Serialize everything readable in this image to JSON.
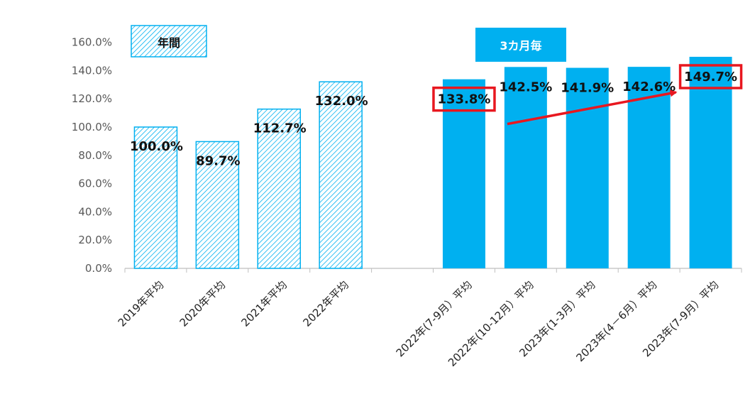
{
  "chart_data": {
    "type": "bar",
    "ylim": [
      0,
      160
    ],
    "yticks": [
      "0.0%",
      "20.0%",
      "40.0%",
      "60.0%",
      "80.0%",
      "100.0%",
      "120.0%",
      "140.0%",
      "160.0%"
    ],
    "grid": false,
    "legend": [
      {
        "label": "年間",
        "style": "hatched"
      },
      {
        "label": "3カ月毎",
        "style": "solid"
      }
    ],
    "series": [
      {
        "categories": [
          "2019年平均",
          "2020年平均",
          "2021年平均",
          "2022年平均"
        ],
        "values": [
          100.0,
          89.7,
          112.7,
          132.0
        ],
        "labels": [
          "100.0%",
          "89.7%",
          "112.7%",
          "132.0%"
        ],
        "color": "#00b0f0",
        "style": "hatched"
      },
      {
        "categories": [
          "2022年(7-9月）平均",
          "2022年(10-12月）平均",
          "2023年(1-3月）平均",
          "2023年(4－6月）平均",
          "2023年(7-9月）平均"
        ],
        "values": [
          133.8,
          142.5,
          141.9,
          142.6,
          149.7
        ],
        "labels": [
          "133.8%",
          "142.5%",
          "141.9%",
          "142.6%",
          "149.7%"
        ],
        "color": "#00b0f0",
        "style": "solid"
      }
    ],
    "annotations": {
      "highlight_color": "#e8171f",
      "highlighted_labels": [
        "133.8%",
        "149.7%"
      ],
      "arrow_from": "133.8%",
      "arrow_to": "149.7%"
    }
  }
}
